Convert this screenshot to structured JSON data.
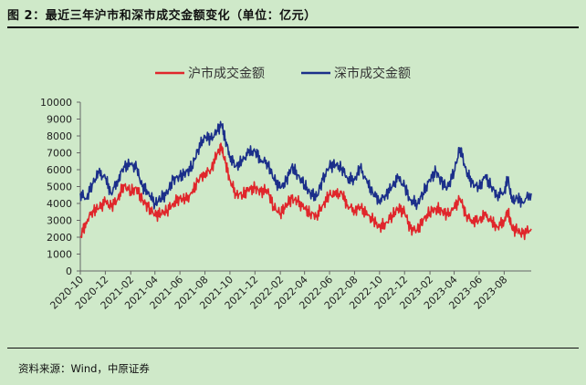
{
  "page": {
    "title": "图 2：最近三年沪市和深市成交金额变化（单位：亿元）",
    "source": "资料来源：Wind，中原证券"
  },
  "chart_data": {
    "type": "line",
    "ylim": [
      0,
      10000
    ],
    "yticks": [
      0,
      1000,
      2000,
      3000,
      4000,
      5000,
      6000,
      7000,
      8000,
      9000,
      10000
    ],
    "x_range": [
      "2020-10-01",
      "2023-10-06"
    ],
    "xtick_labels": [
      "2020-10",
      "2020-12",
      "2021-02",
      "2021-04",
      "2021-06",
      "2021-08",
      "2021-10",
      "2021-12",
      "2022-02",
      "2022-04",
      "2022-06",
      "2022-08",
      "2022-10",
      "2022-12",
      "2023-02",
      "2023-04",
      "2023-06",
      "2023-08"
    ],
    "legend_position": "top-center",
    "series": [
      {
        "name": "沪市成交金额",
        "color": "#e0262b",
        "points": [
          [
            "2020-10-01",
            2000
          ],
          [
            "2020-10-15",
            2900
          ],
          [
            "2020-11-01",
            3600
          ],
          [
            "2020-11-15",
            3700
          ],
          [
            "2020-12-01",
            4100
          ],
          [
            "2020-12-15",
            3800
          ],
          [
            "2021-01-01",
            4300
          ],
          [
            "2021-01-15",
            5100
          ],
          [
            "2021-02-01",
            4700
          ],
          [
            "2021-02-15",
            4900
          ],
          [
            "2021-03-01",
            4200
          ],
          [
            "2021-03-15",
            3800
          ],
          [
            "2021-04-01",
            3300
          ],
          [
            "2021-04-15",
            3400
          ],
          [
            "2021-05-01",
            3600
          ],
          [
            "2021-05-15",
            4000
          ],
          [
            "2021-06-01",
            4300
          ],
          [
            "2021-06-15",
            4200
          ],
          [
            "2021-07-01",
            4600
          ],
          [
            "2021-07-15",
            5400
          ],
          [
            "2021-08-01",
            5800
          ],
          [
            "2021-08-15",
            6000
          ],
          [
            "2021-09-01",
            7000
          ],
          [
            "2021-09-10",
            7300
          ],
          [
            "2021-09-20",
            6400
          ],
          [
            "2021-10-01",
            5400
          ],
          [
            "2021-10-15",
            4600
          ],
          [
            "2021-11-01",
            4500
          ],
          [
            "2021-11-15",
            4800
          ],
          [
            "2021-12-01",
            4900
          ],
          [
            "2021-12-15",
            4700
          ],
          [
            "2022-01-01",
            4800
          ],
          [
            "2022-01-15",
            3800
          ],
          [
            "2022-02-01",
            3400
          ],
          [
            "2022-02-15",
            3900
          ],
          [
            "2022-03-01",
            4300
          ],
          [
            "2022-03-15",
            4100
          ],
          [
            "2022-04-01",
            3700
          ],
          [
            "2022-04-15",
            3400
          ],
          [
            "2022-05-01",
            3300
          ],
          [
            "2022-05-15",
            3900
          ],
          [
            "2022-06-01",
            4500
          ],
          [
            "2022-06-15",
            4500
          ],
          [
            "2022-07-01",
            4600
          ],
          [
            "2022-07-15",
            3900
          ],
          [
            "2022-08-01",
            3600
          ],
          [
            "2022-08-15",
            3800
          ],
          [
            "2022-09-01",
            3300
          ],
          [
            "2022-09-15",
            3000
          ],
          [
            "2022-10-01",
            2600
          ],
          [
            "2022-10-15",
            2800
          ],
          [
            "2022-11-01",
            3300
          ],
          [
            "2022-11-15",
            3700
          ],
          [
            "2022-12-01",
            3500
          ],
          [
            "2022-12-15",
            2500
          ],
          [
            "2023-01-01",
            2400
          ],
          [
            "2023-01-15",
            3000
          ],
          [
            "2023-02-01",
            3500
          ],
          [
            "2023-02-15",
            3700
          ],
          [
            "2023-03-01",
            3600
          ],
          [
            "2023-03-15",
            3300
          ],
          [
            "2023-04-01",
            3700
          ],
          [
            "2023-04-15",
            4300
          ],
          [
            "2023-05-01",
            3300
          ],
          [
            "2023-05-15",
            3000
          ],
          [
            "2023-06-01",
            3000
          ],
          [
            "2023-06-15",
            3300
          ],
          [
            "2023-07-01",
            2900
          ],
          [
            "2023-07-15",
            2600
          ],
          [
            "2023-08-01",
            3000
          ],
          [
            "2023-08-10",
            3600
          ],
          [
            "2023-08-20",
            2500
          ],
          [
            "2023-09-01",
            2400
          ],
          [
            "2023-09-15",
            2200
          ],
          [
            "2023-10-06",
            2500
          ]
        ]
      },
      {
        "name": "深市成交金额",
        "color": "#1b2f8a",
        "points": [
          [
            "2020-10-01",
            4600
          ],
          [
            "2020-10-15",
            4300
          ],
          [
            "2020-11-01",
            5200
          ],
          [
            "2020-11-15",
            5800
          ],
          [
            "2020-12-01",
            5500
          ],
          [
            "2020-12-15",
            4600
          ],
          [
            "2021-01-01",
            5400
          ],
          [
            "2021-01-15",
            6200
          ],
          [
            "2021-02-01",
            6300
          ],
          [
            "2021-02-15",
            6100
          ],
          [
            "2021-03-01",
            5000
          ],
          [
            "2021-03-15",
            4700
          ],
          [
            "2021-04-01",
            4000
          ],
          [
            "2021-04-15",
            4300
          ],
          [
            "2021-05-01",
            4600
          ],
          [
            "2021-05-15",
            5400
          ],
          [
            "2021-06-01",
            5600
          ],
          [
            "2021-06-15",
            5800
          ],
          [
            "2021-07-01",
            6200
          ],
          [
            "2021-07-15",
            7200
          ],
          [
            "2021-08-01",
            8000
          ],
          [
            "2021-08-15",
            7800
          ],
          [
            "2021-09-01",
            8300
          ],
          [
            "2021-09-10",
            8700
          ],
          [
            "2021-09-20",
            7800
          ],
          [
            "2021-10-01",
            6800
          ],
          [
            "2021-10-15",
            6200
          ],
          [
            "2021-11-01",
            6500
          ],
          [
            "2021-11-15",
            7000
          ],
          [
            "2021-12-01",
            7100
          ],
          [
            "2021-12-15",
            6600
          ],
          [
            "2022-01-01",
            6400
          ],
          [
            "2022-01-15",
            5500
          ],
          [
            "2022-02-01",
            4900
          ],
          [
            "2022-02-15",
            5300
          ],
          [
            "2022-03-01",
            6200
          ],
          [
            "2022-03-15",
            5700
          ],
          [
            "2022-04-01",
            5100
          ],
          [
            "2022-04-15",
            4600
          ],
          [
            "2022-05-01",
            4400
          ],
          [
            "2022-05-15",
            5400
          ],
          [
            "2022-06-01",
            6200
          ],
          [
            "2022-06-15",
            6300
          ],
          [
            "2022-07-01",
            6100
          ],
          [
            "2022-07-15",
            5500
          ],
          [
            "2022-08-01",
            5400
          ],
          [
            "2022-08-15",
            6100
          ],
          [
            "2022-09-01",
            5200
          ],
          [
            "2022-09-15",
            4600
          ],
          [
            "2022-10-01",
            4200
          ],
          [
            "2022-10-15",
            4500
          ],
          [
            "2022-11-01",
            5000
          ],
          [
            "2022-11-15",
            5500
          ],
          [
            "2022-12-01",
            5000
          ],
          [
            "2022-12-15",
            4200
          ],
          [
            "2023-01-01",
            4000
          ],
          [
            "2023-01-15",
            4600
          ],
          [
            "2023-02-01",
            5400
          ],
          [
            "2023-02-15",
            5900
          ],
          [
            "2023-03-01",
            5300
          ],
          [
            "2023-03-15",
            4900
          ],
          [
            "2023-04-01",
            5900
          ],
          [
            "2023-04-15",
            7300
          ],
          [
            "2023-05-01",
            5900
          ],
          [
            "2023-05-15",
            5200
          ],
          [
            "2023-06-01",
            4900
          ],
          [
            "2023-06-15",
            5600
          ],
          [
            "2023-07-01",
            5000
          ],
          [
            "2023-07-15",
            4500
          ],
          [
            "2023-08-01",
            4700
          ],
          [
            "2023-08-10",
            5500
          ],
          [
            "2023-08-20",
            4100
          ],
          [
            "2023-09-01",
            4300
          ],
          [
            "2023-09-15",
            4100
          ],
          [
            "2023-10-06",
            4600
          ]
        ]
      }
    ]
  }
}
